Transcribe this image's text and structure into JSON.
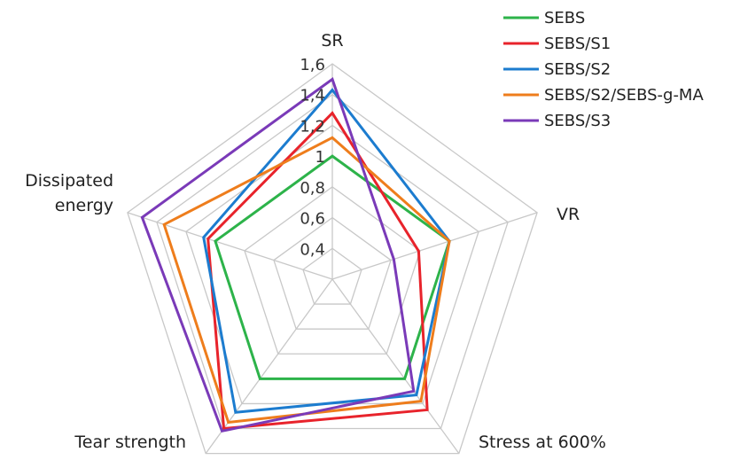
{
  "chart_data": {
    "type": "radar",
    "title": "",
    "axes": [
      {
        "lines": [
          "SR"
        ]
      },
      {
        "lines": [
          "VR"
        ]
      },
      {
        "lines": [
          "Stress at 600%"
        ]
      },
      {
        "lines": [
          "Tear strength"
        ]
      },
      {
        "lines": [
          "Dissipated",
          "energy"
        ]
      }
    ],
    "rlim": [
      0.2,
      1.6
    ],
    "ticks": [
      "0,4",
      "0,6",
      "0,8",
      "1",
      "1,2",
      "1,4",
      "1,6"
    ],
    "tick_values": [
      0.4,
      0.6,
      0.8,
      1.0,
      1.2,
      1.4,
      1.6
    ],
    "grid": true,
    "legend_position": "top-right",
    "series": [
      {
        "name": "SEBS",
        "color": "#2db34a",
        "values": [
          1.0,
          1.0,
          1.0,
          1.0,
          1.0
        ]
      },
      {
        "name": "SEBS/S1",
        "color": "#e8232b",
        "values": [
          1.28,
          0.79,
          1.25,
          1.4,
          1.05
        ]
      },
      {
        "name": "SEBS/S2",
        "color": "#1c7ccf",
        "values": [
          1.43,
          1.0,
          1.13,
          1.27,
          1.08
        ]
      },
      {
        "name": "SEBS/S2/SEBS-g-MA",
        "color": "#ee7d1c",
        "values": [
          1.12,
          1.0,
          1.18,
          1.35,
          1.35
        ]
      },
      {
        "name": "SEBS/S3",
        "color": "#7a3ab8",
        "values": [
          1.5,
          0.62,
          1.1,
          1.42,
          1.5
        ]
      }
    ]
  }
}
